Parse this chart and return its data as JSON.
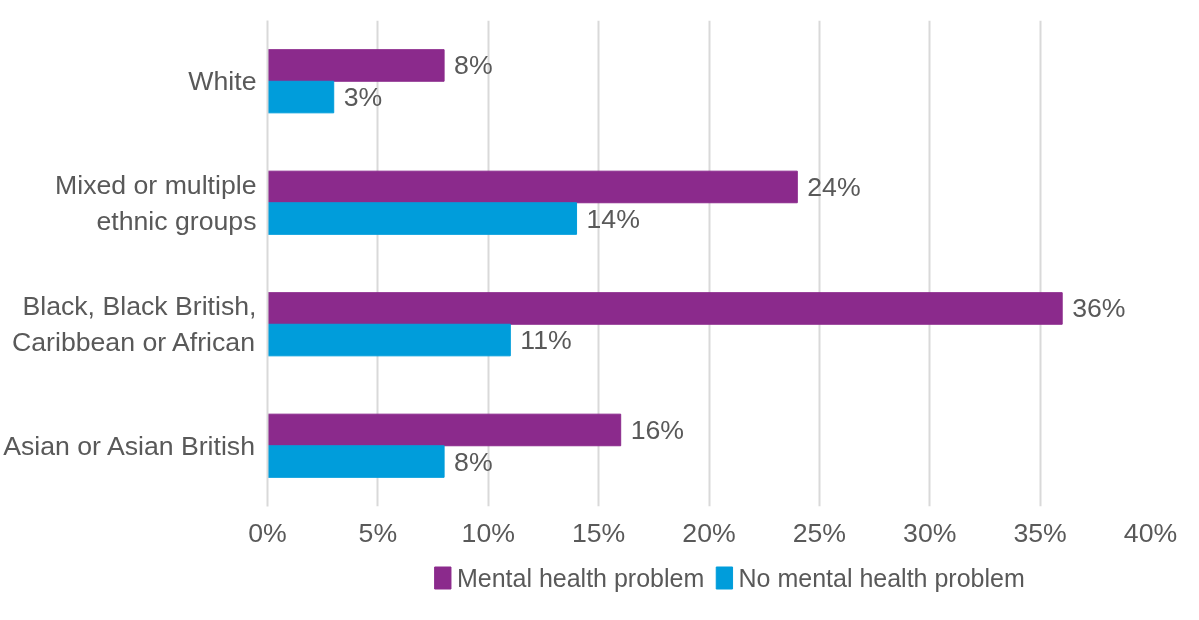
{
  "chart_data": {
    "type": "bar",
    "orientation": "horizontal",
    "categories": [
      "White",
      "Mixed or multiple ethnic groups",
      "Black, Black British, Caribbean or African",
      "Asian or Asian British"
    ],
    "series": [
      {
        "name": "Mental health problem",
        "color": "#8b2a8c",
        "values": [
          8,
          24,
          36,
          16
        ],
        "value_labels": [
          "8%",
          "24%",
          "36%",
          "16%"
        ]
      },
      {
        "name": "No mental health problem",
        "color": "#009ddb",
        "values": [
          3,
          14,
          11,
          8
        ],
        "value_labels": [
          "3%",
          "14%",
          "11%",
          "8%"
        ]
      }
    ],
    "xlim": [
      0,
      40
    ],
    "xticks": [
      {
        "value": 0,
        "label": "0%"
      },
      {
        "value": 5,
        "label": "5%"
      },
      {
        "value": 10,
        "label": "10%"
      },
      {
        "value": 15,
        "label": "15%"
      },
      {
        "value": 20,
        "label": "20%"
      },
      {
        "value": 25,
        "label": "25%"
      },
      {
        "value": 30,
        "label": "30%"
      },
      {
        "value": 35,
        "label": "35%"
      },
      {
        "value": 40,
        "label": "40%"
      }
    ],
    "grid": "x",
    "legend": "bottom"
  }
}
